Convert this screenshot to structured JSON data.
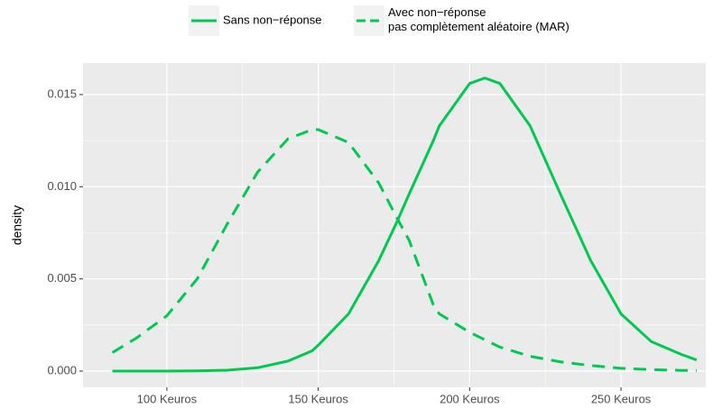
{
  "chart_data": {
    "type": "line",
    "y_label": "density",
    "x": [
      82,
      90,
      100,
      110,
      120,
      130,
      140,
      148,
      150,
      160,
      170,
      176,
      180,
      188,
      190,
      200,
      205,
      210,
      220,
      230,
      240,
      250,
      260,
      270,
      275
    ],
    "series": [
      {
        "name": "Sans non−réponse",
        "color": "#00c94f",
        "linestyle": "solid",
        "values": [
          0,
          0,
          0,
          1e-05,
          5e-05,
          0.00018,
          0.00054,
          0.0011,
          0.0014,
          0.0031,
          0.006,
          0.0081,
          0.0096,
          0.0125,
          0.0133,
          0.0156,
          0.0159,
          0.0156,
          0.0133,
          0.0096,
          0.006,
          0.0031,
          0.0016,
          0.0009,
          0.0006
        ]
      },
      {
        "name": "Avec non−réponse\npas complètement aléatoire (MAR)",
        "color": "#00c94f",
        "linestyle": "dashed",
        "values": [
          0.001,
          0.0018,
          0.003,
          0.005,
          0.008,
          0.0108,
          0.0126,
          0.0131,
          0.0131,
          0.0124,
          0.0102,
          0.0083,
          0.0071,
          0.0036,
          0.0031,
          0.0021,
          0.0017,
          0.0013,
          0.0008,
          0.0005,
          0.0003,
          0.00015,
          8e-05,
          4e-05,
          3e-05
        ]
      }
    ],
    "xlim": [
      72.3,
      278
    ],
    "ylim": [
      -0.00088,
      0.01671
    ],
    "xticks": [
      {
        "value": 100,
        "label": "100 Keuros"
      },
      {
        "value": 150,
        "label": "150 Keuros"
      },
      {
        "value": 200,
        "label": "200 Keuros"
      },
      {
        "value": 250,
        "label": "250 Keuros"
      }
    ],
    "yticks": [
      {
        "value": 0,
        "label": "0.000"
      },
      0.005,
      {
        "value": 0.01,
        "label": "0.010"
      },
      {
        "value": 0.015,
        "label": "0.015"
      }
    ],
    "grid": true,
    "legend_position": "top"
  }
}
